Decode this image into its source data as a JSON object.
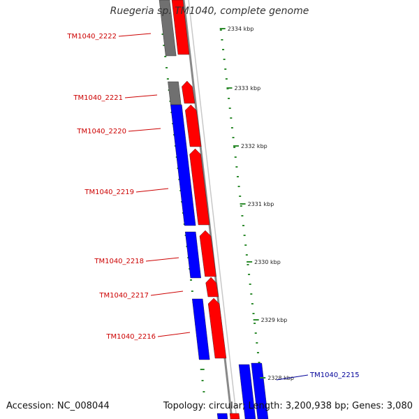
{
  "title": "Ruegeria sp. TM1040, complete genome",
  "footer": {
    "accession": "Accession: NC_008044",
    "stats": "Topology: circular; Length: 3,200,938 bp; Genes: 3,080"
  },
  "colors": {
    "forward_gene": "#ff0000",
    "reverse_gene": "#0000ff",
    "other_feature": "#707070",
    "backbone": "#888888",
    "tick": "#2e8b2e",
    "label_red": "#cc0000",
    "label_blue": "#000099"
  },
  "scale_ticks": [
    {
      "kbp": 2334,
      "label": "2334 kbp"
    },
    {
      "kbp": 2333,
      "label": "2333 kbp"
    },
    {
      "kbp": 2332,
      "label": "2332 kbp"
    },
    {
      "kbp": 2331,
      "label": "2331 kbp"
    },
    {
      "kbp": 2330,
      "label": "2330 kbp"
    },
    {
      "kbp": 2329,
      "label": "2329 kbp"
    },
    {
      "kbp": 2328,
      "label": "2328 kbp"
    }
  ],
  "gene_labels": [
    {
      "name": "TM1040_2222",
      "color": "red"
    },
    {
      "name": "TM1040_2221",
      "color": "red"
    },
    {
      "name": "TM1040_2220",
      "color": "red"
    },
    {
      "name": "TM1040_2219",
      "color": "red"
    },
    {
      "name": "TM1040_2218",
      "color": "red"
    },
    {
      "name": "TM1040_2217",
      "color": "red"
    },
    {
      "name": "TM1040_2216",
      "color": "red"
    },
    {
      "name": "TM1040_2215",
      "color": "blue"
    }
  ]
}
